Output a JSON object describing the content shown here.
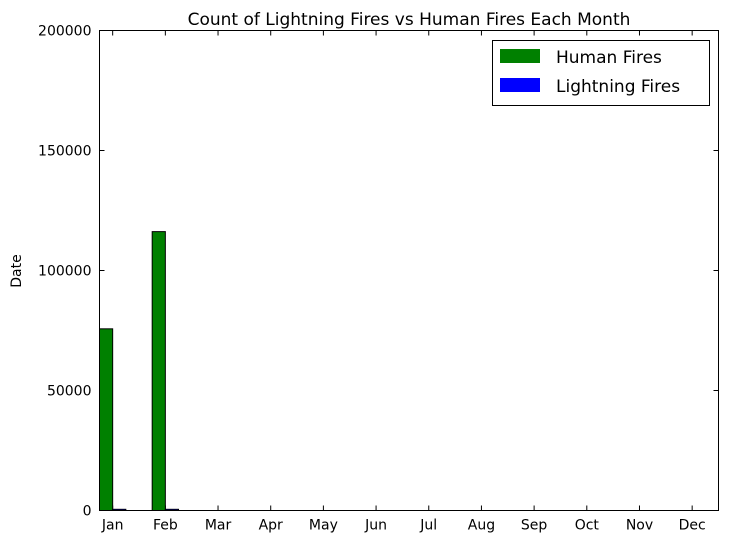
{
  "chart_data": {
    "type": "bar",
    "title": "Count of Lightning Fires vs Human Fires Each Month",
    "xlabel": "",
    "ylabel": "Date",
    "categories": [
      "Jan",
      "Feb",
      "Mar",
      "Apr",
      "May",
      "Jun",
      "Jul",
      "Aug",
      "Sep",
      "Oct",
      "Nov",
      "Dec"
    ],
    "series": [
      {
        "name": "Human Fires",
        "color": "#008000",
        "values": [
          75700,
          116200,
          0,
          0,
          0,
          0,
          0,
          0,
          0,
          0,
          0,
          0
        ]
      },
      {
        "name": "Lightning Fires",
        "color": "#0000ff",
        "values": [
          500,
          500,
          0,
          0,
          0,
          0,
          0,
          0,
          0,
          0,
          0,
          0
        ]
      }
    ],
    "ylim": [
      0,
      200000
    ],
    "yticks": [
      "0",
      "50000",
      "100000",
      "150000",
      "200000"
    ],
    "grid": false,
    "legend_position": "top-right"
  }
}
